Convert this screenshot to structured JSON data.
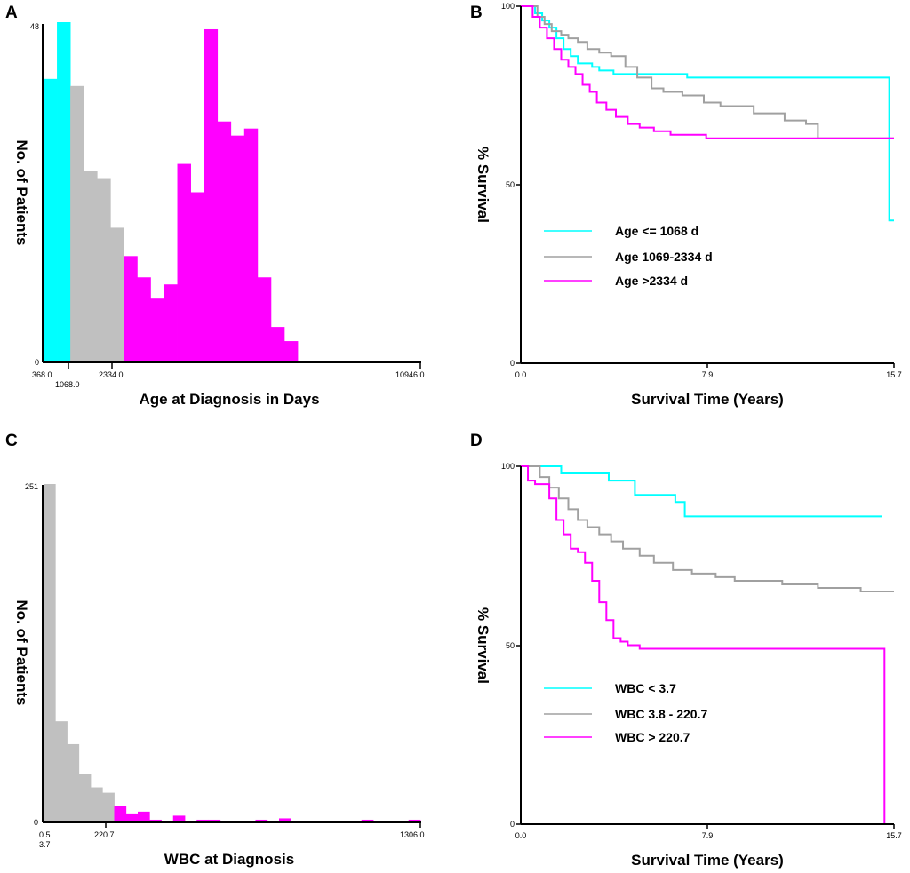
{
  "colors": {
    "cyan": "#00ffff",
    "gray": "#c0c0c0",
    "magenta": "#ff00ff",
    "gray_line": "#a0a0a0"
  },
  "chart_data": [
    {
      "id": "A",
      "type": "bar",
      "panel_label": "A",
      "ylabel": "No. of Patients",
      "xlabel": "Age at Diagnosis in Days",
      "y_ticks": [
        "48",
        "0"
      ],
      "ylim": [
        0,
        48
      ],
      "x_tick_labels": [
        "368.0",
        "1068.0",
        "2334.0",
        "10946.0"
      ],
      "bins": [
        {
          "color": "cyan",
          "value": 40
        },
        {
          "color": "cyan",
          "value": 48
        },
        {
          "color": "gray",
          "value": 39
        },
        {
          "color": "gray",
          "value": 27
        },
        {
          "color": "gray",
          "value": 26
        },
        {
          "color": "gray",
          "value": 19
        },
        {
          "color": "magenta",
          "value": 15
        },
        {
          "color": "magenta",
          "value": 12
        },
        {
          "color": "magenta",
          "value": 9
        },
        {
          "color": "magenta",
          "value": 11
        },
        {
          "color": "magenta",
          "value": 28
        },
        {
          "color": "magenta",
          "value": 24
        },
        {
          "color": "magenta",
          "value": 47
        },
        {
          "color": "magenta",
          "value": 34
        },
        {
          "color": "magenta",
          "value": 32
        },
        {
          "color": "magenta",
          "value": 33
        },
        {
          "color": "magenta",
          "value": 12
        },
        {
          "color": "magenta",
          "value": 5
        },
        {
          "color": "magenta",
          "value": 3
        }
      ]
    },
    {
      "id": "B",
      "type": "line",
      "panel_label": "B",
      "ylabel": "% Survival",
      "xlabel": "Survival Time (Years)",
      "y_ticks": [
        "100",
        "50",
        "0"
      ],
      "x_ticks": [
        "0.0",
        "7.9",
        "15.7"
      ],
      "xlim": [
        0,
        15.7
      ],
      "ylim": [
        0,
        100
      ],
      "series": [
        {
          "name": "Age <= 1068 d",
          "color": "cyan",
          "x": [
            0,
            0.6,
            0.9,
            1.2,
            1.5,
            1.8,
            2.1,
            2.4,
            2.7,
            3.0,
            3.3,
            3.9,
            7.0,
            15.5,
            15.5,
            15.7
          ],
          "y": [
            100,
            98,
            96,
            94,
            91,
            88,
            86,
            84,
            84,
            83,
            82,
            81,
            80,
            80,
            40,
            40
          ]
        },
        {
          "name": "Age  1069-2334 d",
          "color": "gray",
          "x": [
            0,
            0.7,
            1.0,
            1.3,
            1.7,
            2.0,
            2.4,
            2.8,
            3.3,
            3.8,
            4.4,
            4.9,
            5.5,
            6.0,
            6.8,
            7.7,
            8.4,
            9.8,
            11.1,
            12.0,
            12.5,
            15.7
          ],
          "y": [
            100,
            97,
            95,
            93,
            92,
            91,
            90,
            88,
            87,
            86,
            83,
            80,
            77,
            76,
            75,
            73,
            72,
            70,
            68,
            67,
            63,
            63
          ]
        },
        {
          "name": "Age  >2334 d",
          "color": "magenta",
          "x": [
            0,
            0.5,
            0.8,
            1.1,
            1.4,
            1.7,
            2.0,
            2.3,
            2.6,
            2.9,
            3.2,
            3.6,
            4.0,
            4.5,
            5.0,
            5.6,
            6.3,
            7.0,
            7.8,
            9.0,
            12.0,
            15.7
          ],
          "y": [
            100,
            97,
            94,
            91,
            88,
            85,
            83,
            81,
            78,
            76,
            73,
            71,
            69,
            67,
            66,
            65,
            64,
            64,
            63,
            63,
            63,
            63
          ]
        }
      ]
    },
    {
      "id": "C",
      "type": "bar",
      "panel_label": "C",
      "ylabel": "No. of Patients",
      "xlabel": "WBC at Diagnosis",
      "y_ticks": [
        "251",
        "0"
      ],
      "ylim": [
        0,
        251
      ],
      "x_tick_labels": [
        "0.5",
        "3.7",
        "220.7",
        "1306.0"
      ],
      "bins": [
        {
          "color": "gray",
          "value": 251
        },
        {
          "color": "gray",
          "value": 75
        },
        {
          "color": "gray",
          "value": 58
        },
        {
          "color": "gray",
          "value": 36
        },
        {
          "color": "gray",
          "value": 26
        },
        {
          "color": "gray",
          "value": 22
        },
        {
          "color": "magenta",
          "value": 12
        },
        {
          "color": "magenta",
          "value": 6
        },
        {
          "color": "magenta",
          "value": 8
        },
        {
          "color": "magenta",
          "value": 2
        },
        {
          "color": "magenta",
          "value": 0
        },
        {
          "color": "magenta",
          "value": 5
        },
        {
          "color": "magenta",
          "value": 0
        },
        {
          "color": "magenta",
          "value": 2
        },
        {
          "color": "magenta",
          "value": 2
        },
        {
          "color": "magenta",
          "value": 0
        },
        {
          "color": "magenta",
          "value": 0
        },
        {
          "color": "magenta",
          "value": 0
        },
        {
          "color": "magenta",
          "value": 2
        },
        {
          "color": "magenta",
          "value": 0
        },
        {
          "color": "magenta",
          "value": 3
        },
        {
          "color": "magenta",
          "value": 0
        },
        {
          "color": "magenta",
          "value": 0
        },
        {
          "color": "magenta",
          "value": 0
        },
        {
          "color": "magenta",
          "value": 0
        },
        {
          "color": "magenta",
          "value": 0
        },
        {
          "color": "magenta",
          "value": 0
        },
        {
          "color": "magenta",
          "value": 2
        },
        {
          "color": "magenta",
          "value": 0
        },
        {
          "color": "magenta",
          "value": 0
        },
        {
          "color": "magenta",
          "value": 0
        },
        {
          "color": "magenta",
          "value": 2
        }
      ]
    },
    {
      "id": "D",
      "type": "line",
      "panel_label": "D",
      "ylabel": "% Survival",
      "xlabel": "Survival Time (Years)",
      "y_ticks": [
        "100",
        "50",
        "0"
      ],
      "x_ticks": [
        "0.0",
        "7.9",
        "15.7"
      ],
      "xlim": [
        0,
        15.7
      ],
      "ylim": [
        0,
        100
      ],
      "series": [
        {
          "name": "WBC < 3.7",
          "color": "cyan",
          "x": [
            0,
            1.7,
            1.7,
            3.7,
            3.7,
            4.8,
            4.8,
            6.5,
            6.5,
            6.9,
            6.9,
            15.2
          ],
          "y": [
            100,
            100,
            98,
            98,
            96,
            96,
            92,
            92,
            90,
            90,
            86,
            86
          ]
        },
        {
          "name": "WBC 3.8 - 220.7",
          "color": "gray",
          "x": [
            0,
            0.8,
            1.2,
            1.6,
            2.0,
            2.4,
            2.8,
            3.3,
            3.8,
            4.3,
            5.0,
            5.6,
            6.4,
            7.2,
            8.2,
            9.0,
            10.2,
            11.0,
            11.7,
            12.5,
            13.4,
            14.3,
            15.7
          ],
          "y": [
            100,
            97,
            94,
            91,
            88,
            85,
            83,
            81,
            79,
            77,
            75,
            73,
            71,
            70,
            69,
            68,
            68,
            67,
            67,
            66,
            66,
            65,
            65
          ]
        },
        {
          "name": "WBC > 220.7",
          "color": "magenta",
          "x": [
            0,
            0.3,
            0.6,
            0.9,
            1.2,
            1.5,
            1.8,
            2.1,
            2.4,
            2.7,
            3.0,
            3.3,
            3.6,
            3.9,
            4.2,
            4.5,
            5.0,
            15.3,
            15.3
          ],
          "y": [
            100,
            96,
            95,
            95,
            91,
            85,
            81,
            77,
            76,
            73,
            68,
            62,
            57,
            52,
            51,
            50,
            49,
            49,
            0
          ]
        }
      ]
    }
  ]
}
